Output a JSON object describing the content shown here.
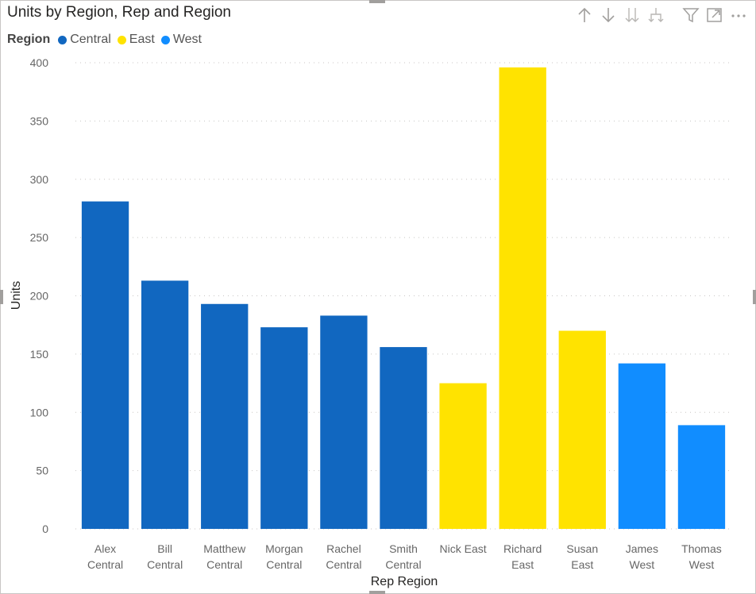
{
  "chart_data": {
    "type": "bar",
    "title": "Units by Region, Rep and Region",
    "xlabel": "Rep Region",
    "ylabel": "Units",
    "ylim": [
      0,
      400
    ],
    "yticks": [
      0,
      50,
      100,
      150,
      200,
      250,
      300,
      350,
      400
    ],
    "grid": true,
    "legend": {
      "title": "Region",
      "position": "top-left",
      "entries": [
        {
          "name": "Central",
          "color": "#1167C0"
        },
        {
          "name": "East",
          "color": "#FFE300"
        },
        {
          "name": "West",
          "color": "#118DFF"
        }
      ]
    },
    "categories": [
      [
        "Alex",
        "Central"
      ],
      [
        "Bill",
        "Central"
      ],
      [
        "Matthew",
        "Central"
      ],
      [
        "Morgan",
        "Central"
      ],
      [
        "Rachel",
        "Central"
      ],
      [
        "Smith",
        "Central"
      ],
      [
        "Nick East"
      ],
      [
        "Richard",
        "East"
      ],
      [
        "Susan",
        "East"
      ],
      [
        "James",
        "West"
      ],
      [
        "Thomas",
        "West"
      ]
    ],
    "region": [
      "Central",
      "Central",
      "Central",
      "Central",
      "Central",
      "Central",
      "East",
      "East",
      "East",
      "West",
      "West"
    ],
    "values": [
      281,
      213,
      193,
      173,
      183,
      156,
      125,
      396,
      170,
      142,
      89
    ]
  },
  "toolbar": {
    "icons": [
      "arrow-up-icon",
      "arrow-down-icon",
      "double-arrow-down-icon",
      "expand-hierarchy-icon",
      "filter-icon",
      "focus-mode-icon",
      "more-options-icon"
    ]
  }
}
